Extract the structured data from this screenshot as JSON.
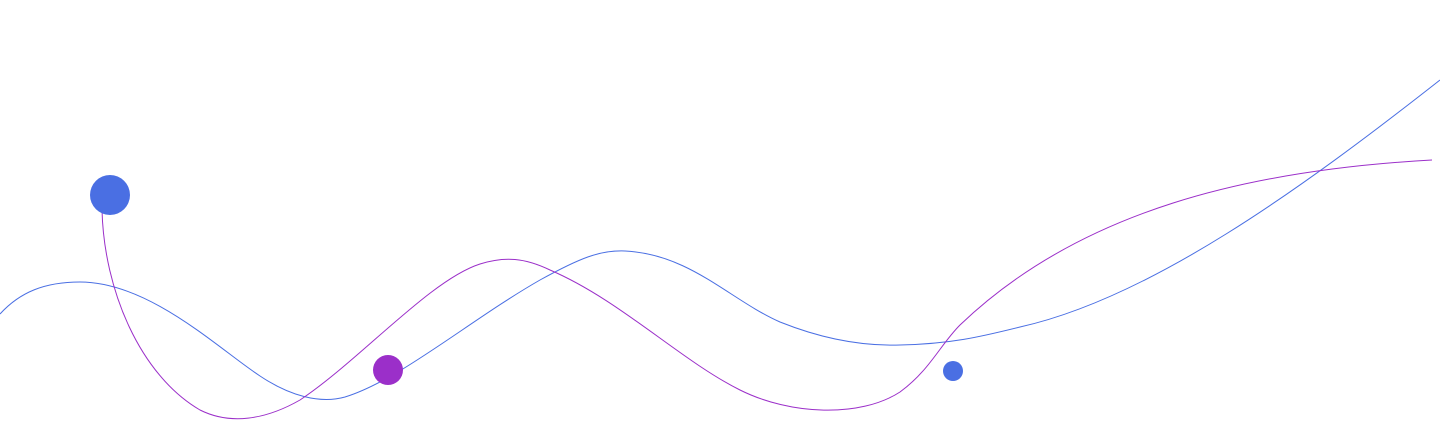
{
  "colors": {
    "background": "#ffffff",
    "blue": "#4a6fe3",
    "purple": "#9b2fc9"
  }
}
